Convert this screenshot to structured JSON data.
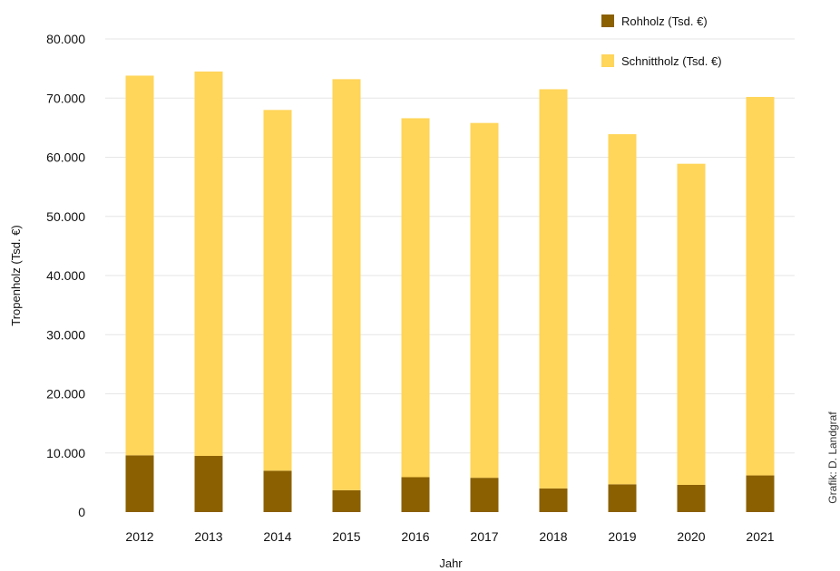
{
  "chart_data": {
    "type": "bar",
    "stacked": true,
    "categories": [
      "2012",
      "2013",
      "2014",
      "2015",
      "2016",
      "2017",
      "2018",
      "2019",
      "2020",
      "2021"
    ],
    "series": [
      {
        "name": "Rohholz (Tsd. €)",
        "color": "#8B6000",
        "values": [
          9600,
          9500,
          7000,
          3700,
          5900,
          5800,
          4000,
          4700,
          4600,
          6200
        ]
      },
      {
        "name": "Schnittholz (Tsd. €)",
        "color": "#FFD55A",
        "values": [
          64200,
          65000,
          61000,
          69500,
          60700,
          60000,
          67500,
          59200,
          54300,
          64000
        ]
      }
    ],
    "xlabel": "Jahr",
    "ylabel": "Tropenholz (Tsd. €)",
    "ylim": [
      0,
      80000
    ],
    "yticks": [
      0,
      10000,
      20000,
      30000,
      40000,
      50000,
      60000,
      70000,
      80000
    ],
    "ytick_labels": [
      "0",
      "10.000",
      "20.000",
      "30.000",
      "40.000",
      "50.000",
      "60.000",
      "70.000",
      "80.000"
    ],
    "grid": true,
    "legend_position": "top-right",
    "gridline_color": "#e6e6e6"
  },
  "credit": "Grafik: D. Landgraf"
}
